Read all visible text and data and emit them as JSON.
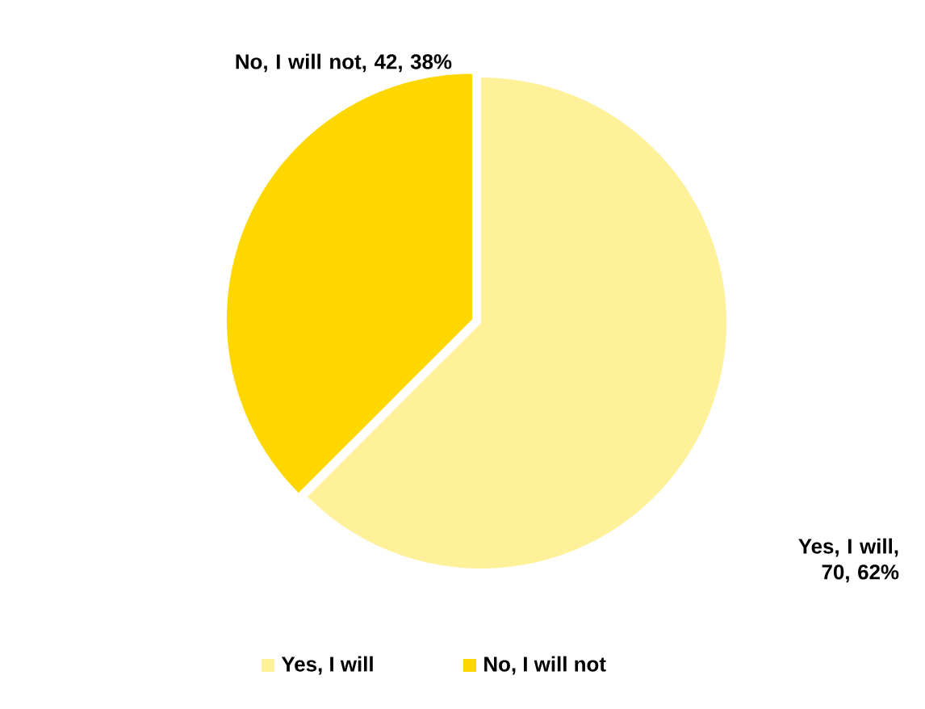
{
  "chart_data": {
    "type": "pie",
    "categories": [
      "Yes, I will",
      "No, I will not"
    ],
    "values": [
      70,
      42
    ],
    "colors": [
      "#fff09a",
      "#ffd700"
    ],
    "value_labels": [
      "Yes, I will, 70, 62%",
      "No, I will not, 42, 38%"
    ],
    "legend": "bottom"
  }
}
